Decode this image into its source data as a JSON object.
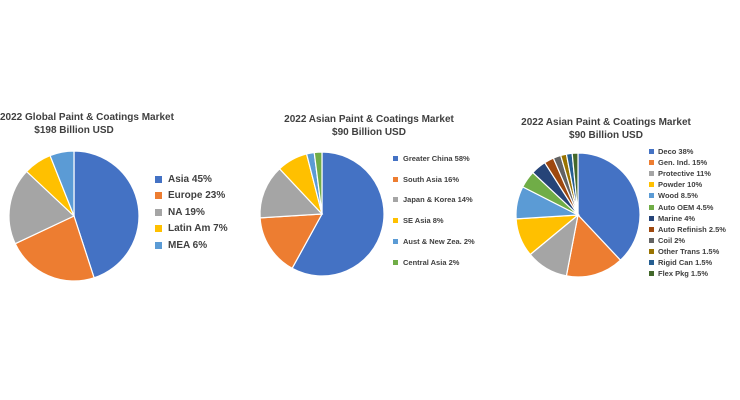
{
  "chart_data": [
    {
      "type": "pie",
      "title": "2022 Global Paint & Coatings Market",
      "subtitle": "$198 Billion USD",
      "slices": [
        {
          "label": "Asia 45%",
          "value": 45,
          "color": "#4472C4"
        },
        {
          "label": "Europe 23%",
          "value": 23,
          "color": "#ED7D31"
        },
        {
          "label": "NA 19%",
          "value": 19,
          "color": "#A5A5A5"
        },
        {
          "label": "Latin Am 7%",
          "value": 7,
          "color": "#FFC000"
        },
        {
          "label": "MEA 6%",
          "value": 6,
          "color": "#5B9BD5"
        }
      ],
      "legend_position": "right"
    },
    {
      "type": "pie",
      "title": "2022 Asian Paint & Coatings Market",
      "subtitle": "$90 Billion USD",
      "slices": [
        {
          "label": "Greater China 58%",
          "value": 58,
          "color": "#4472C4"
        },
        {
          "label": "South Asia 16%",
          "value": 16,
          "color": "#ED7D31"
        },
        {
          "label": "Japan & Korea 14%",
          "value": 14,
          "color": "#A5A5A5"
        },
        {
          "label": "SE Asia 8%",
          "value": 8,
          "color": "#FFC000"
        },
        {
          "label": "Aust & New Zea. 2%",
          "value": 2,
          "color": "#5B9BD5"
        },
        {
          "label": "Central Asia 2%",
          "value": 2,
          "color": "#70AD47"
        }
      ],
      "legend_position": "right"
    },
    {
      "type": "pie",
      "title": "2022 Asian Paint & Coatings Market",
      "subtitle": "$90 Billion USD",
      "slices": [
        {
          "label": "Deco 38%",
          "value": 38,
          "color": "#4472C4"
        },
        {
          "label": "Gen. Ind. 15%",
          "value": 15,
          "color": "#ED7D31"
        },
        {
          "label": "Protective 11%",
          "value": 11,
          "color": "#A5A5A5"
        },
        {
          "label": "Powder 10%",
          "value": 10,
          "color": "#FFC000"
        },
        {
          "label": "Wood 8.5%",
          "value": 8.5,
          "color": "#5B9BD5"
        },
        {
          "label": "Auto OEM 4.5%",
          "value": 4.5,
          "color": "#70AD47"
        },
        {
          "label": "Marine 4%",
          "value": 4,
          "color": "#264478"
        },
        {
          "label": "Auto Refinish 2.5%",
          "value": 2.5,
          "color": "#9E480E"
        },
        {
          "label": "Coil 2%",
          "value": 2,
          "color": "#636363"
        },
        {
          "label": "Other Trans 1.5%",
          "value": 1.5,
          "color": "#997300"
        },
        {
          "label": "Rigid Can 1.5%",
          "value": 1.5,
          "color": "#255E91"
        },
        {
          "label": "Flex Pkg 1.5%",
          "value": 1.5,
          "color": "#43682B"
        }
      ],
      "legend_position": "right"
    }
  ]
}
